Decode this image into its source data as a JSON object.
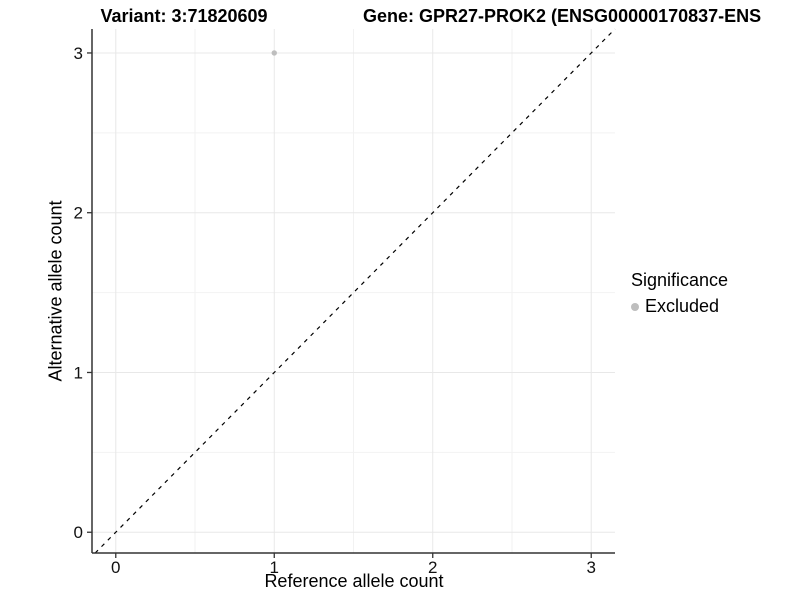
{
  "titles": {
    "variant": "Variant: 3:71820609",
    "gene": "Gene: GPR27-PROK2 (ENSG00000170837-ENS"
  },
  "chart_data": {
    "type": "scatter",
    "title": "Variant: 3:71820609 | Gene: GPR27-PROK2 (ENSG00000170837-ENS",
    "xlabel": "Reference allele count",
    "ylabel": "Alternative allele count",
    "xlim": [
      -0.15,
      3.15
    ],
    "ylim": [
      -0.13,
      3.15
    ],
    "x_ticks": [
      0,
      1,
      2,
      3
    ],
    "y_ticks": [
      0,
      1,
      2,
      3
    ],
    "x_minor_ticks": [
      0.5,
      1.5,
      2.5
    ],
    "y_minor_ticks": [
      0.5,
      1.5,
      2.5
    ],
    "grid": "major+minor",
    "series": [
      {
        "name": "Excluded",
        "marker": "circle",
        "color": "#bebebe",
        "points": [
          {
            "x": 1,
            "y": 3
          }
        ]
      }
    ],
    "reference_line": {
      "type": "identity",
      "slope": 1,
      "intercept": 0,
      "style": "dashed",
      "color": "#000000"
    },
    "legend": {
      "title": "Significance",
      "position": "right",
      "entries": [
        {
          "label": "Excluded",
          "color": "#bebebe",
          "marker": "circle"
        }
      ]
    }
  },
  "colors": {
    "background": "#ffffff",
    "grid_major": "#e8e8e8",
    "grid_minor": "#f2f2f2",
    "axis_line": "#333333",
    "tick_mark": "#333333",
    "tick_text": "#111111",
    "title_text": "#000000",
    "point": "#bebebe"
  }
}
